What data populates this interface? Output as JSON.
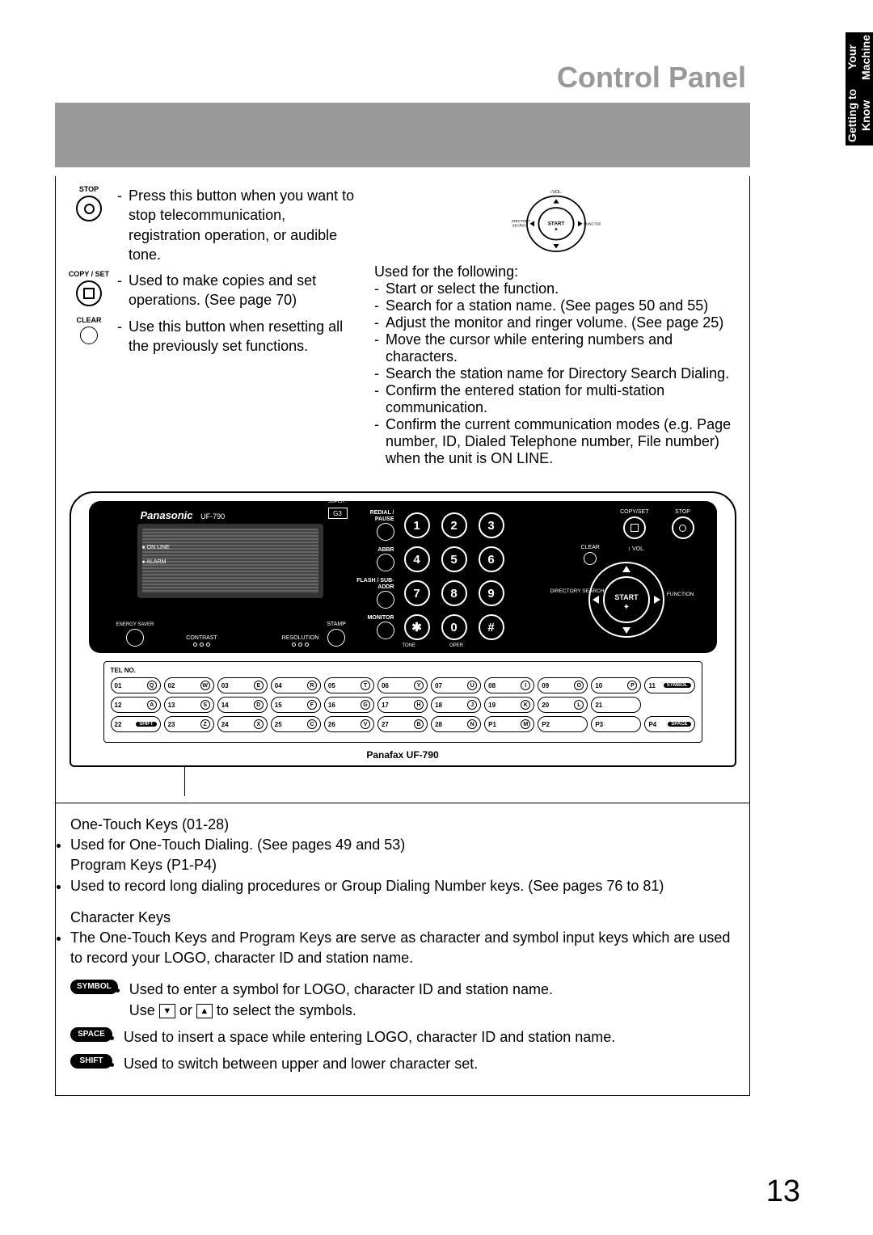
{
  "tab": {
    "line1": "Getting to Know",
    "line2": "Your Machine"
  },
  "title": "Control Panel",
  "page_number": "13",
  "left_descs": {
    "stop": {
      "label": "STOP",
      "text": "Press this button when you want to stop telecommunication, registration operation, or audible tone."
    },
    "copyset": {
      "label": "COPY / SET",
      "text": "Used to make copies and set operations. (See page 70)"
    },
    "clear": {
      "label": "CLEAR",
      "text": "Use this button when resetting all the previously set functions."
    }
  },
  "right_desc": {
    "intro": "Used for the following:",
    "items": [
      "Start or select the function.",
      "Search for a station name. (See pages 50 and 55)",
      "Adjust the monitor and ringer volume. (See page 25)",
      "Move the cursor while entering numbers and characters.",
      "Search the station name for Directory Search Dialing.",
      "Confirm the entered station for multi-station communication.",
      "Confirm the current communication modes (e.g. Page number, ID, Dialed Telephone number, File number) when the unit is ON LINE."
    ],
    "wheel_labels": {
      "top": "VOL.",
      "left": "DIRECTORY SEARCH",
      "right": "FUNCTION",
      "center": "START"
    }
  },
  "panel": {
    "brand": "Panasonic",
    "model": "UF-790",
    "g3": "G3",
    "super": "SUPER",
    "led1": "ON LINE",
    "led2": "ALARM",
    "energy": "ENERGY SAVER",
    "contrast": "CONTRAST",
    "resolution": "RESOLUTION",
    "stamp": "STAMP",
    "monitor": "MONITOR",
    "tone": "TONE",
    "oper": "OPER",
    "kp_labels": [
      "REDIAL / PAUSE",
      "ABBR",
      "FLASH / SUB-ADDR",
      "MONITOR"
    ],
    "keys": [
      "1",
      "2",
      "3",
      "4",
      "5",
      "6",
      "7",
      "8",
      "9",
      "✱",
      "0",
      "#"
    ],
    "rc": {
      "copyset": "COPY/SET",
      "stop": "STOP",
      "clear": "CLEAR",
      "vol": "VOL.",
      "dir": "DIRECTORY SEARCH",
      "func": "FUNCTION",
      "start": "START"
    },
    "tel": "TEL NO.",
    "ot_rows": [
      [
        [
          "01",
          "Q"
        ],
        [
          "02",
          "W"
        ],
        [
          "03",
          "E"
        ],
        [
          "04",
          "R"
        ],
        [
          "05",
          "T"
        ],
        [
          "06",
          "Y"
        ],
        [
          "07",
          "U"
        ],
        [
          "08",
          "I"
        ],
        [
          "09",
          "O"
        ],
        [
          "10",
          "P"
        ],
        [
          "11",
          "SYMBOL"
        ]
      ],
      [
        [
          "12",
          "A"
        ],
        [
          "13",
          "S"
        ],
        [
          "14",
          "D"
        ],
        [
          "15",
          "F"
        ],
        [
          "16",
          "G"
        ],
        [
          "17",
          "H"
        ],
        [
          "18",
          "J"
        ],
        [
          "19",
          "K"
        ],
        [
          "20",
          "L"
        ],
        [
          "21",
          ""
        ],
        [
          "",
          ""
        ]
      ],
      [
        [
          "22",
          "SHIFT"
        ],
        [
          "23",
          "Z"
        ],
        [
          "24",
          "X"
        ],
        [
          "25",
          "C"
        ],
        [
          "26",
          "V"
        ],
        [
          "27",
          "B"
        ],
        [
          "28",
          "N"
        ],
        [
          "P1",
          "M"
        ],
        [
          "P2",
          ""
        ],
        [
          "P3",
          ""
        ],
        [
          "P4",
          "SPACE"
        ]
      ]
    ],
    "model_label": "Panafax UF-790"
  },
  "bottom": {
    "onetouch_title": "One-Touch Keys (01-28)",
    "onetouch_text": "Used for One-Touch Dialing. (See pages 49 and 53)",
    "program_title": "Program Keys (P1-P4)",
    "program_text": "Used to record long dialing procedures or Group Dialing Number keys. (See pages 76 to 81)",
    "char_title": "Character Keys",
    "char_text": "The One-Touch Keys and Program Keys are serve as character and symbol input keys which are used to record your LOGO, character ID and station name.",
    "symbol_label": "SYMBOL",
    "symbol_text1": "Used to enter a symbol for LOGO, character ID and station name.",
    "symbol_text2a": "Use ",
    "symbol_text2b": " or ",
    "symbol_text2c": " to select the symbols.",
    "space_label": "SPACE",
    "space_text": "Used to insert a space while entering LOGO, character ID and station name.",
    "shift_label": "SHIFT",
    "shift_text": "Used to switch between upper and lower character set."
  },
  "colors": {
    "gray": "#999999",
    "black": "#000000"
  }
}
